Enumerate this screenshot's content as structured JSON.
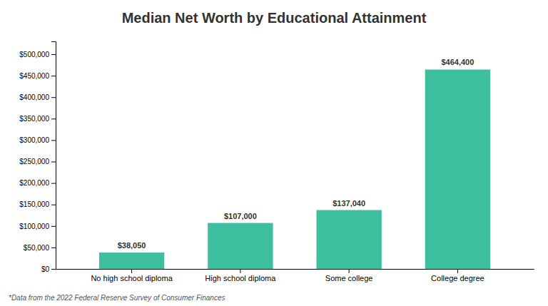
{
  "chart_data": {
    "type": "bar",
    "title": "Median Net Worth by Educational Attainment",
    "categories": [
      "No high school diploma",
      "High school diploma",
      "Some college",
      "College degree"
    ],
    "values": [
      38050,
      107000,
      137040,
      464400
    ],
    "value_labels": [
      "$38,050",
      "$107,000",
      "$137,040",
      "$464,400"
    ],
    "data_labels": true,
    "color": "#3dbfa0",
    "ylim": [
      0,
      530000
    ],
    "yticks": [
      {
        "value": 0,
        "label": "$0"
      },
      {
        "value": 50000,
        "label": "$50,000"
      },
      {
        "value": 100000,
        "label": "$100,000"
      },
      {
        "value": 150000,
        "label": "$150,000"
      },
      {
        "value": 200000,
        "label": "$200,000"
      },
      {
        "value": 250000,
        "label": "$250,000"
      },
      {
        "value": 300000,
        "label": "$300,000"
      },
      {
        "value": 350000,
        "label": "$350,000"
      },
      {
        "value": 400000,
        "label": "$400,000"
      },
      {
        "value": 450000,
        "label": "$450,000"
      },
      {
        "value": 500000,
        "label": "$500,000"
      }
    ],
    "grid": false,
    "footnote": "*Data from the 2022 Federal Reserve Survey of Consumer Finances"
  }
}
